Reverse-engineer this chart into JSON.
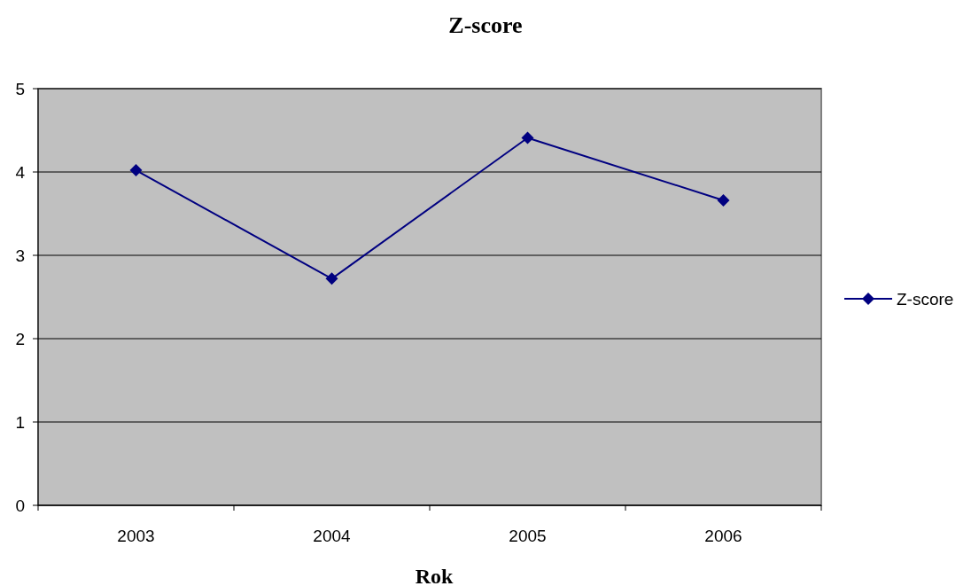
{
  "chart_data": {
    "type": "line",
    "title": "Z-score",
    "xlabel": "Rok",
    "categories": [
      "2003",
      "2004",
      "2005",
      "2006"
    ],
    "series": [
      {
        "name": "Z-score",
        "color": "#000080",
        "values": [
          4.02,
          2.72,
          4.41,
          3.66
        ]
      }
    ],
    "ylim": [
      0,
      5
    ],
    "yticks": [
      0,
      1,
      2,
      3,
      4,
      5
    ],
    "grid": "y",
    "legend": "right",
    "marker": "diamond",
    "line_style": "solid"
  }
}
